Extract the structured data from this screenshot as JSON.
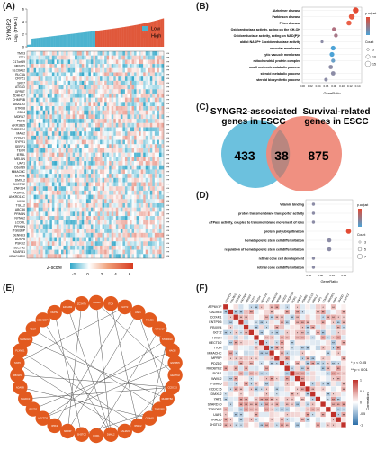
{
  "panels": {
    "A": "(A)",
    "B": "(B)",
    "C": "(C)",
    "D": "(D)",
    "E": "(E)",
    "F": "(F)"
  },
  "panelA": {
    "ylabel_line1": "SYNGR2",
    "ylabel_line2": "Log₂ (TPM+1)",
    "yticks": [
      "0",
      "2",
      "4",
      "6"
    ],
    "legend": [
      {
        "label": "Low",
        "color": "#4db3cf"
      },
      {
        "label": "High",
        "color": "#e0583b"
      }
    ],
    "genes": [
      "TMX3",
      "JTT1",
      "C17orf49",
      "MFN2D",
      "SLC6A12",
      "RLC3A",
      "CRYZ1",
      "SRY7",
      "ATG4D",
      "GPR8T",
      "ZDHHC7",
      "CHMP4B",
      "UBAL2D",
      "UTRD8",
      "CBX4",
      "MDRA7",
      "PEDS",
      "AKR1B15",
      "TMPRSS4",
      "MAG2",
      "COX4I1",
      "SYPR1",
      "SERP1",
      "TECR",
      "IER5L",
      "MEI-BN",
      "UAP1",
      "C6orf89",
      "MMACHC",
      "ELANE",
      "DMXL2",
      "SHCTR2",
      "ZNF214",
      "PACRGL",
      "ANKRD13C",
      "VASN",
      "TGLL2",
      "ABCB6",
      "PRM3N",
      "NYNG2",
      "LCORL",
      "PPHON",
      "ITGB3BP",
      "DENND3",
      "DUSP6",
      "PSKD2",
      "SLC7A2",
      "ADARB1",
      "ARHGAP10"
    ],
    "sig": "***",
    "zscore_label": "Z-score",
    "zscore_ticks": [
      "-2",
      "0",
      "2",
      "4",
      "6"
    ]
  },
  "panelB": {
    "terms": [
      "Alzheimer disease",
      "Parkinson disease",
      "Prion disease",
      "Oxidoreductase activity, acting on the CH-OH",
      "Oxidoreductase activity, acting on NAD(P)H",
      "aldiol:NADP+ 1-oxidoreductase activity",
      "vacuolar membrane",
      "lytic vacuole membrane",
      "mitochondrial protein complex",
      "small molecule catabolic process",
      "steroid metabolic process",
      "steroid biosynthetic process"
    ],
    "xlabel": "GeneRatio",
    "xticks": [
      "0.00",
      "0.02",
      "0.04",
      "0.06",
      "0.08",
      "0.10",
      "0.12",
      "0.14"
    ],
    "legend_title_color": "p.adjust",
    "legend_title_size": "Count",
    "size_ticks": [
      "5",
      "10",
      "15"
    ]
  },
  "panelC": {
    "left_title_line1": "SYNGR2-associated",
    "left_title_line2": "genes in ESCC",
    "right_title_line1": "Survival-related",
    "right_title_line2": "genes in ESCC",
    "left_only": "433",
    "overlap": "38",
    "right_only": "875",
    "left_color": "#6cc1de",
    "right_color": "#ef8a7a"
  },
  "panelD": {
    "terms": [
      "Vitamin binding",
      "proton transmembrane transporter activity",
      "ATPase activity, coupled to transmembrane movement of ions",
      "protein polyubiquitination",
      "hematopoietic stem cell differentiation",
      "regulation of hematopoietic stem cell differentiation",
      "retinal cone cell development",
      "retinal cone cell differentiation"
    ],
    "xlabel": "GeneRatio",
    "xticks": [
      "0.06",
      "0.08",
      "0.10",
      "0.12"
    ],
    "legend_title_color": "p.adjust",
    "legend_title_size": "Count",
    "size_ticks": [
      "3",
      "5",
      "7"
    ]
  },
  "panelE": {
    "nodes": [
      "TRADD",
      "ITCH",
      "GOT2",
      "UAP1",
      "PSMB5",
      "ATP6V1F",
      "STARD10",
      "HAGH",
      "ENTPD5",
      "HECTD2",
      "CCDC15",
      "RHOBTB2",
      "TOPORS",
      "COX4I1",
      "WWC2",
      "CALML5",
      "DMXL2",
      "ROR1",
      "SH3TC2",
      "MPRIP",
      "IP6K2",
      "HECTD3",
      "PDZD2",
      "KLHDC3",
      "ADAM9",
      "FBXW4",
      "SNX5",
      "PLXND1",
      "MMACHC",
      "TECR",
      "CDC42EP4",
      "NUP62",
      "EFCAB2",
      "ZC3H7A"
    ]
  },
  "panelF": {
    "rows": [
      "ATP6V1F",
      "CALML5",
      "COX4I1",
      "ENTPD5",
      "FBXW4",
      "GOT2",
      "HAGH",
      "HECTD2",
      "ITCH",
      "MMACHC",
      "MPRIP",
      "PDZD2",
      "RHOBTB2",
      "ROR1",
      "WWC2",
      "PSMB5",
      "CCDC15",
      "DMXL2",
      "YAP1",
      "STARD10",
      "TOPORS",
      "UAP1",
      "TRADD",
      "SH3TC2"
    ],
    "sig_legend": [
      "* p < 0.05",
      "** p < 0.01"
    ],
    "colorbar_title": "Correlation",
    "colorbar_ticks": [
      "1",
      "0.5",
      "0",
      "-0.5",
      "-1"
    ]
  }
}
